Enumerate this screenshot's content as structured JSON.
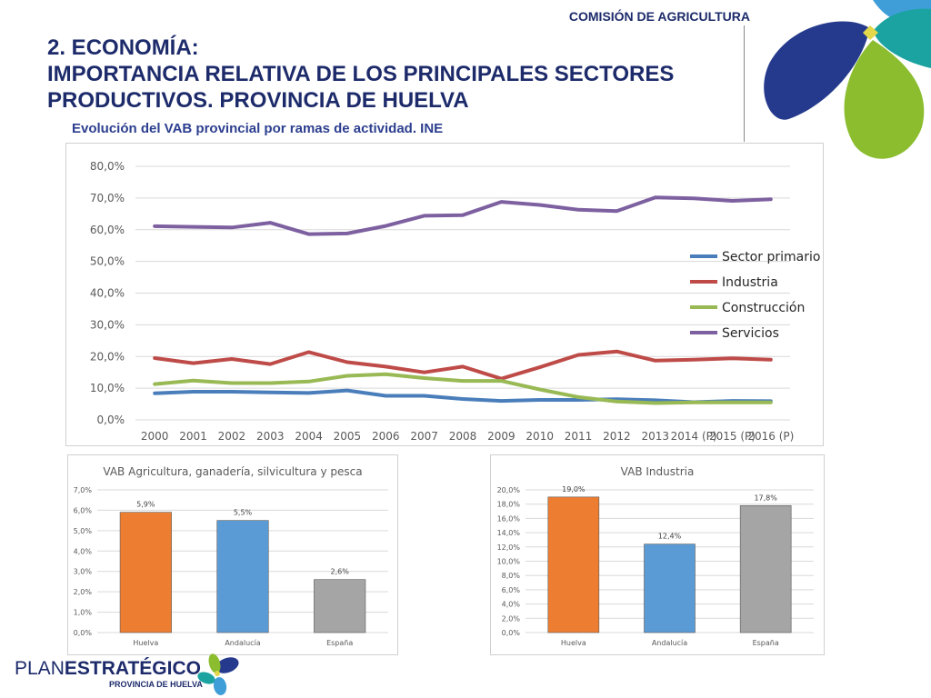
{
  "header": {
    "label": "COMISIÓN DE AGRICULTURA",
    "title_lines": [
      "2. ECONOMÍA:",
      "IMPORTANCIA RELATIVA DE LOS PRINCIPALES SECTORES",
      "PRODUCTIVOS. PROVINCIA DE HUELVA"
    ],
    "subtitle": "Evolución del VAB provincial por ramas de actividad. INE"
  },
  "colors": {
    "brand_navy": "#1d2b6b",
    "brand_green": "#8bbd2f",
    "brand_teal": "#1ba3a1",
    "brand_blue": "#3f9ed8",
    "brand_yellow": "#e2d84a"
  },
  "footer": {
    "plan": "PLAN",
    "estrategico": "ESTRATÉGICO",
    "provincia": "PROVINCIA DE HUELVA"
  },
  "chart_data": [
    {
      "type": "line",
      "title": "",
      "categories": [
        "2000",
        "2001",
        "2002",
        "2003",
        "2004",
        "2005",
        "2006",
        "2007",
        "2008",
        "2009",
        "2010",
        "2011",
        "2012",
        "2013",
        "2014 (P)",
        "2015 (P)",
        "2016 (P)"
      ],
      "y_ticks": [
        "0,0%",
        "10,0%",
        "20,0%",
        "30,0%",
        "40,0%",
        "50,0%",
        "60,0%",
        "70,0%",
        "80,0%"
      ],
      "ylim": [
        0,
        80
      ],
      "grid": true,
      "legend_position": "right",
      "series": [
        {
          "name": "Sector primario",
          "color": "#4a7ebb",
          "values": [
            8.4,
            8.9,
            8.9,
            8.7,
            8.5,
            9.3,
            7.6,
            7.6,
            6.6,
            6.0,
            6.3,
            6.3,
            6.5,
            6.2,
            5.6,
            6.0,
            5.9
          ]
        },
        {
          "name": "Industria",
          "color": "#be4b48",
          "values": [
            19.5,
            17.9,
            19.2,
            17.6,
            21.4,
            18.2,
            16.8,
            15.0,
            16.8,
            13.0,
            16.6,
            20.5,
            21.6,
            18.7,
            19.0,
            19.4,
            19.0
          ]
        },
        {
          "name": "Construcción",
          "color": "#98b954",
          "values": [
            11.3,
            12.4,
            11.6,
            11.6,
            12.1,
            13.9,
            14.4,
            13.2,
            12.3,
            12.3,
            9.6,
            7.2,
            5.8,
            5.3,
            5.5,
            5.5,
            5.5
          ]
        },
        {
          "name": "Servicios",
          "color": "#7d60a0",
          "values": [
            61.1,
            60.9,
            60.7,
            62.2,
            58.6,
            58.8,
            61.2,
            64.4,
            64.6,
            68.8,
            67.8,
            66.3,
            65.9,
            70.2,
            69.9,
            69.1,
            69.6
          ]
        }
      ]
    },
    {
      "type": "bar",
      "title": "VAB Agricultura, ganadería, silvicultura y pesca",
      "categories": [
        "Huelva",
        "Andalucía",
        "España"
      ],
      "values": [
        5.9,
        5.5,
        2.6
      ],
      "value_labels": [
        "5,9%",
        "5,5%",
        "2,6%"
      ],
      "bar_colors": [
        "#ed7d31",
        "#5b9bd5",
        "#a5a5a5"
      ],
      "y_ticks": [
        "0,0%",
        "1,0%",
        "2,0%",
        "3,0%",
        "4,0%",
        "5,0%",
        "6,0%",
        "7,0%"
      ],
      "ylim": [
        0,
        7
      ],
      "grid": true
    },
    {
      "type": "bar",
      "title": "VAB Industria",
      "categories": [
        "Huelva",
        "Andalucía",
        "España"
      ],
      "values": [
        19.0,
        12.4,
        17.8
      ],
      "value_labels": [
        "19,0%",
        "12,4%",
        "17,8%"
      ],
      "bar_colors": [
        "#ed7d31",
        "#5b9bd5",
        "#a5a5a5"
      ],
      "y_ticks": [
        "0,0%",
        "2,0%",
        "4,0%",
        "6,0%",
        "8,0%",
        "10,0%",
        "12,0%",
        "14,0%",
        "16,0%",
        "18,0%",
        "20,0%"
      ],
      "ylim": [
        0,
        20
      ],
      "grid": true
    }
  ]
}
